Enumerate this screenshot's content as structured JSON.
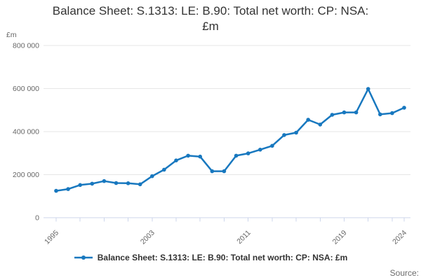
{
  "title": {
    "line1": "Balance Sheet: S.1313: LE: B.90: Total net worth: CP: NSA:",
    "line2": "£m"
  },
  "y_axis": {
    "unit": "£m",
    "ticks": [
      {
        "value": 0,
        "label": "0"
      },
      {
        "value": 200000,
        "label": "200 000"
      },
      {
        "value": 400000,
        "label": "400 000"
      },
      {
        "value": 600000,
        "label": "600 000"
      },
      {
        "value": 800000,
        "label": "800 000"
      }
    ]
  },
  "x_axis": {
    "tick_years": [
      1995,
      1997,
      1999,
      2001,
      2003,
      2005,
      2007,
      2009,
      2011,
      2013,
      2015,
      2017,
      2019,
      2021,
      2023,
      2024
    ],
    "labeled_years": [
      1995,
      2003,
      2011,
      2019,
      2024
    ]
  },
  "legend": {
    "label": "Balance Sheet: S.1313: LE: B.90: Total net worth: CP: NSA: £m"
  },
  "source": {
    "label": "Source:"
  },
  "colors": {
    "line": "#1878bf",
    "grid": "#e6e6e6",
    "axis": "#ccd6eb",
    "tick_text": "#666666",
    "title_text": "#333333"
  },
  "chart_data": {
    "type": "line",
    "title": "Balance Sheet: S.1313: LE: B.90: Total net worth: CP: NSA: £m",
    "ylabel": "£m",
    "ylim": [
      0,
      800000
    ],
    "grid": true,
    "legend_position": "bottom",
    "x": [
      1995,
      1996,
      1997,
      1998,
      1999,
      2000,
      2001,
      2002,
      2003,
      2004,
      2005,
      2006,
      2007,
      2008,
      2009,
      2010,
      2011,
      2012,
      2013,
      2014,
      2015,
      2016,
      2017,
      2018,
      2019,
      2020,
      2021,
      2022,
      2023,
      2024
    ],
    "series": [
      {
        "name": "Balance Sheet: S.1313: LE: B.90: Total net worth: CP: NSA: £m",
        "values": [
          125000,
          133000,
          152000,
          158000,
          170000,
          161000,
          160000,
          155000,
          193000,
          223000,
          266000,
          288000,
          284000,
          216000,
          216000,
          288000,
          299000,
          316000,
          334000,
          384000,
          395000,
          455000,
          433000,
          478000,
          489000,
          489000,
          598000,
          480000,
          486000,
          511000
        ]
      }
    ]
  }
}
